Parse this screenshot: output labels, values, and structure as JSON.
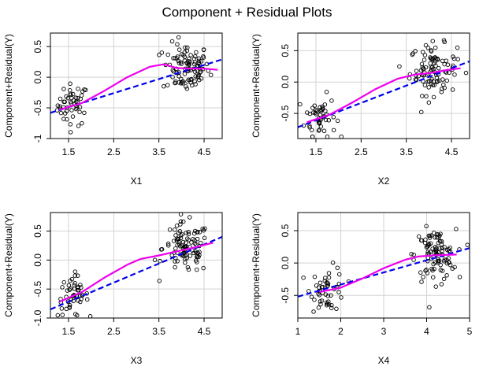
{
  "title": "Component + Residual Plots",
  "colors": {
    "points": "#000000",
    "fit_line": "#0000ee",
    "smooth_line": "#ee00ee",
    "grid": "#d3d3d3"
  },
  "chart_data": [
    {
      "type": "scatter",
      "xlabel": "X1",
      "ylabel": "Component+Residual(Y)",
      "xlim": [
        1.1,
        4.9
      ],
      "ylim": [
        -1.0,
        0.72
      ],
      "xticks": [
        "1.5",
        "2.5",
        "3.5",
        "4.5"
      ],
      "yticks": [
        "-1",
        "-0.5",
        "0.0",
        "0.5"
      ],
      "grid": true,
      "clusters": [
        {
          "x_center": 1.6,
          "x_spread": 0.17,
          "y_center": -0.45,
          "y_spread": 0.17,
          "n": 50
        },
        {
          "x_center": 4.1,
          "x_spread": 0.26,
          "y_center": 0.15,
          "y_spread": 0.2,
          "n": 100
        }
      ],
      "fit_line": {
        "x": [
          1.1,
          4.9
        ],
        "y": [
          -0.58,
          0.29
        ]
      },
      "smooth_line": {
        "x": [
          1.3,
          1.8,
          2.3,
          2.8,
          3.3,
          3.6,
          3.9,
          4.2,
          4.5,
          4.8
        ],
        "y": [
          -0.53,
          -0.42,
          -0.22,
          0.0,
          0.17,
          0.21,
          0.15,
          0.14,
          0.14,
          0.12
        ]
      }
    },
    {
      "type": "scatter",
      "xlabel": "X2",
      "ylabel": "Component+Residual(Y)",
      "xlim": [
        1.1,
        4.9
      ],
      "ylim": [
        -0.9,
        0.78
      ],
      "xticks": [
        "1.5",
        "2.5",
        "3.5",
        "4.5"
      ],
      "yticks": [
        "-0.5",
        "0.0",
        "0.5"
      ],
      "grid": true,
      "clusters": [
        {
          "x_center": 1.6,
          "x_spread": 0.17,
          "y_center": -0.55,
          "y_spread": 0.17,
          "n": 50
        },
        {
          "x_center": 4.1,
          "x_spread": 0.26,
          "y_center": 0.2,
          "y_spread": 0.2,
          "n": 100
        }
      ],
      "fit_line": {
        "x": [
          1.1,
          4.9
        ],
        "y": [
          -0.72,
          0.33
        ]
      },
      "smooth_line": {
        "x": [
          1.3,
          1.8,
          2.3,
          2.8,
          3.3,
          3.7,
          4.0,
          4.3,
          4.7
        ],
        "y": [
          -0.64,
          -0.52,
          -0.33,
          -0.12,
          0.05,
          0.12,
          0.14,
          0.18,
          0.22
        ]
      }
    },
    {
      "type": "scatter",
      "xlabel": "X3",
      "ylabel": "Component+Residual(Y)",
      "xlim": [
        1.1,
        4.9
      ],
      "ylim": [
        -1.0,
        0.82
      ],
      "xticks": [
        "1.5",
        "2.5",
        "3.5",
        "4.5"
      ],
      "yticks": [
        "-1.0",
        "-0.5",
        "0.0",
        "0.5"
      ],
      "grid": true,
      "clusters": [
        {
          "x_center": 1.6,
          "x_spread": 0.17,
          "y_center": -0.62,
          "y_spread": 0.18,
          "n": 50
        },
        {
          "x_center": 4.1,
          "x_spread": 0.26,
          "y_center": 0.2,
          "y_spread": 0.22,
          "n": 100
        }
      ],
      "fit_line": {
        "x": [
          1.1,
          4.9
        ],
        "y": [
          -0.85,
          0.4
        ]
      },
      "smooth_line": {
        "x": [
          1.3,
          1.8,
          2.3,
          2.8,
          3.1,
          3.5,
          3.9,
          4.3,
          4.7
        ],
        "y": [
          -0.72,
          -0.55,
          -0.3,
          -0.08,
          0.02,
          0.08,
          0.15,
          0.22,
          0.3
        ]
      }
    },
    {
      "type": "scatter",
      "xlabel": "X4",
      "ylabel": "Component+Residual(Y)",
      "xlim": [
        1,
        5
      ],
      "ylim": [
        -0.85,
        0.78
      ],
      "xticks": [
        "1",
        "2",
        "3",
        "4",
        "5"
      ],
      "yticks": [
        "-0.5",
        "0.0",
        "0.5"
      ],
      "grid": true,
      "clusters": [
        {
          "x_center": 1.7,
          "x_spread": 0.2,
          "y_center": -0.4,
          "y_spread": 0.17,
          "n": 50
        },
        {
          "x_center": 4.2,
          "x_spread": 0.24,
          "y_center": 0.12,
          "y_spread": 0.2,
          "n": 100
        }
      ],
      "fit_line": {
        "x": [
          1,
          5
        ],
        "y": [
          -0.52,
          0.23
        ]
      },
      "smooth_line": {
        "x": [
          1.5,
          2.0,
          2.5,
          3.0,
          3.5,
          3.8,
          4.2,
          4.7
        ],
        "y": [
          -0.45,
          -0.38,
          -0.24,
          -0.08,
          0.05,
          0.1,
          0.12,
          0.13
        ]
      }
    }
  ]
}
